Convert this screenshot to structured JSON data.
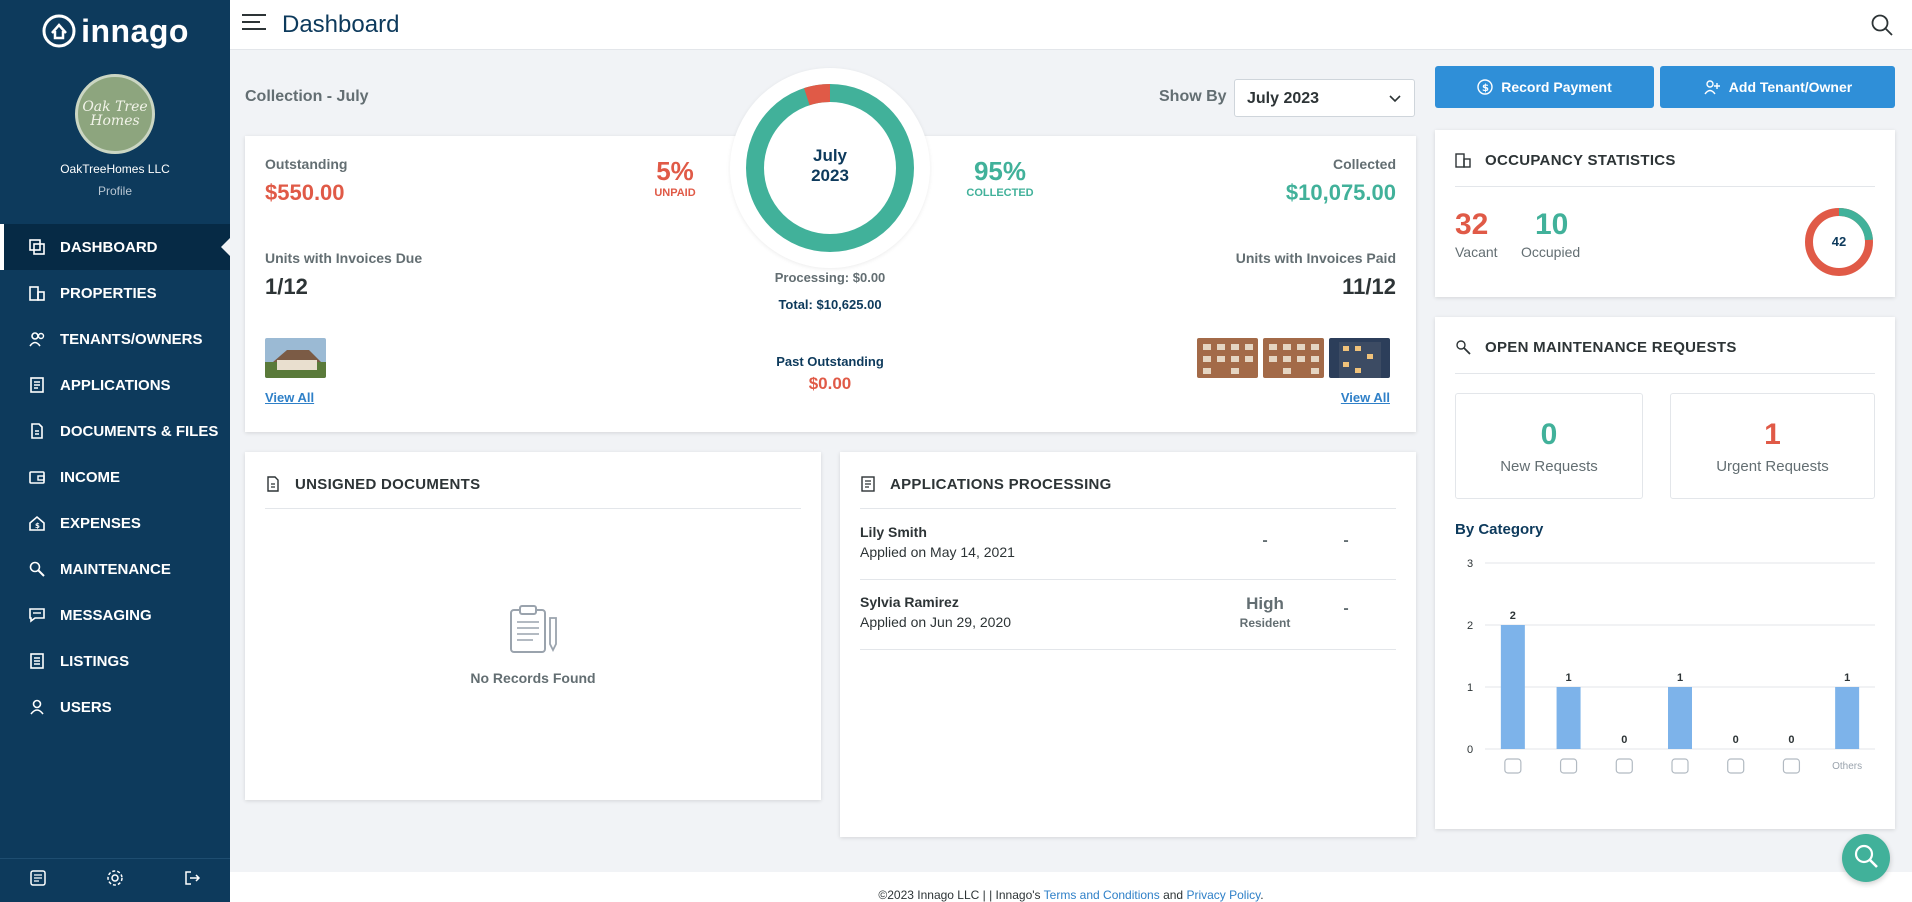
{
  "app": {
    "logo": "innago"
  },
  "sidebar": {
    "company": "OakTreeHomes LLC",
    "profile": "Profile",
    "avatar_text": "Oak Tree Homes",
    "items": [
      {
        "label": "DASHBOARD",
        "icon": "dashboard-icon"
      },
      {
        "label": "PROPERTIES",
        "icon": "building-icon"
      },
      {
        "label": "TENANTS/OWNERS",
        "icon": "people-icon"
      },
      {
        "label": "APPLICATIONS",
        "icon": "application-icon"
      },
      {
        "label": "DOCUMENTS & FILES",
        "icon": "document-icon"
      },
      {
        "label": "INCOME",
        "icon": "wallet-icon"
      },
      {
        "label": "EXPENSES",
        "icon": "expenses-icon"
      },
      {
        "label": "MAINTENANCE",
        "icon": "wrench-icon"
      },
      {
        "label": "MESSAGING",
        "icon": "message-icon"
      },
      {
        "label": "LISTINGS",
        "icon": "listing-icon"
      },
      {
        "label": "USERS",
        "icon": "user-icon"
      }
    ]
  },
  "header": {
    "title": "Dashboard"
  },
  "collection": {
    "label": "Collection - July",
    "show_by_label": "Show By",
    "show_by_value": "July 2023",
    "outstanding_label": "Outstanding",
    "outstanding_value": "$550.00",
    "unpaid_pct": "5%",
    "unpaid_label": "UNPAID",
    "donut_month": "July",
    "donut_year": "2023",
    "collected_pct": "95%",
    "collected_pct_label": "COLLECTED",
    "collected_label": "Collected",
    "collected_value": "$10,075.00",
    "units_due_label": "Units with Invoices Due",
    "units_due_value": "1/12",
    "processing": "Processing: $0.00",
    "total": "Total: $10,625.00",
    "units_paid_label": "Units with Invoices Paid",
    "units_paid_value": "11/12",
    "past_outstanding_label": "Past Outstanding",
    "past_outstanding_value": "$0.00",
    "view_all_left": "View All",
    "view_all_right": "View All",
    "collected_fraction": 0.95,
    "colors": {
      "collected": "#41b19a",
      "unpaid": "#e05a47"
    }
  },
  "actions": {
    "record_payment": "Record Payment",
    "add_tenant": "Add Tenant/Owner"
  },
  "occupancy": {
    "title": "OCCUPANCY STATISTICS",
    "vacant": "32",
    "vacant_label": "Vacant",
    "occupied": "10",
    "occupied_label": "Occupied",
    "total": "42"
  },
  "maintenance": {
    "title": "OPEN MAINTENANCE REQUESTS",
    "new_count": "0",
    "new_label": "New Requests",
    "urgent_count": "1",
    "urgent_label": "Urgent Requests",
    "by_category": "By Category"
  },
  "chart_data": {
    "type": "bar",
    "categories": [
      "sprinkler-icon",
      "bath-icon",
      "stove-icon",
      "thermometer-icon",
      "chef-hat-icon",
      "washer-icon",
      "Others"
    ],
    "values": [
      2,
      1,
      0,
      1,
      0,
      0,
      1
    ],
    "ylim": [
      0,
      3
    ],
    "yticks": [
      "0",
      "1",
      "2",
      "3"
    ],
    "grid": true,
    "bar_color": "#7db3ea"
  },
  "unsigned": {
    "title": "UNSIGNED DOCUMENTS",
    "empty": "No Records Found"
  },
  "applications": {
    "title": "APPLICATIONS PROCESSING",
    "rows": [
      {
        "name": "Lily Smith",
        "date": "Applied on May 14, 2021",
        "score": "-",
        "score_sub": "",
        "status": "-"
      },
      {
        "name": "Sylvia Ramirez",
        "date": "Applied on Jun 29, 2020",
        "score": "High",
        "score_sub": "Resident",
        "status": "-"
      }
    ]
  },
  "footer": {
    "prefix": "©2023 Innago LLC | | Innago's",
    "terms": "Terms and Conditions",
    "and": "and",
    "privacy": "Privacy Policy",
    "suffix": "."
  }
}
